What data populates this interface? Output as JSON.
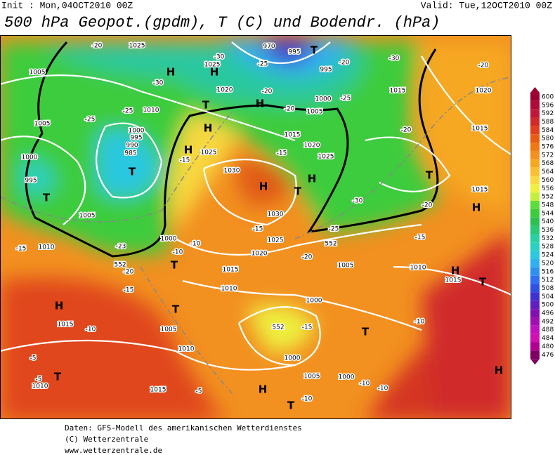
{
  "header": {
    "init": "Init : Mon,04OCT2010 00Z",
    "valid": "Valid: Tue,12OCT2010 00Z",
    "title": "500 hPa Geopot.(gpdm), T (C) und Bodendr. (hPa)"
  },
  "legend": {
    "labels": [
      {
        "text": "600",
        "color": "#9c0030"
      },
      {
        "text": "596",
        "color": "#ae0c36"
      },
      {
        "text": "592",
        "color": "#c0183a"
      },
      {
        "text": "588",
        "color": "#d02a2a"
      },
      {
        "text": "584",
        "color": "#e0401c"
      },
      {
        "text": "580",
        "color": "#e85c12"
      },
      {
        "text": "576",
        "color": "#f07814"
      },
      {
        "text": "572",
        "color": "#f29020"
      },
      {
        "text": "568",
        "color": "#f6a822"
      },
      {
        "text": "564",
        "color": "#f8c032"
      },
      {
        "text": "560",
        "color": "#f8d840"
      },
      {
        "text": "556",
        "color": "#eef040"
      },
      {
        "text": "552",
        "color": "#c4ee3c"
      },
      {
        "text": "548",
        "color": "#5cdc3c"
      },
      {
        "text": "544",
        "color": "#3ccc3c"
      },
      {
        "text": "540",
        "color": "#2cc050"
      },
      {
        "text": "536",
        "color": "#2cc878"
      },
      {
        "text": "532",
        "color": "#2cd0a0"
      },
      {
        "text": "528",
        "color": "#2cd0c0"
      },
      {
        "text": "524",
        "color": "#2cc8e0"
      },
      {
        "text": "520",
        "color": "#30b0f0"
      },
      {
        "text": "516",
        "color": "#3090f0"
      },
      {
        "text": "512",
        "color": "#3070f0"
      },
      {
        "text": "508",
        "color": "#3050e0"
      },
      {
        "text": "504",
        "color": "#4030d0"
      },
      {
        "text": "500",
        "color": "#6020c0"
      },
      {
        "text": "496",
        "color": "#8010b0"
      },
      {
        "text": "492",
        "color": "#a010b0"
      },
      {
        "text": "488",
        "color": "#c010c0"
      },
      {
        "text": "484",
        "color": "#d010b0"
      },
      {
        "text": "480",
        "color": "#b00090"
      },
      {
        "text": "476",
        "color": "#800060"
      }
    ]
  },
  "map_labels": [
    "H",
    "H",
    "T",
    "970",
    "H",
    "T",
    "H",
    "H",
    "T",
    "T",
    "H",
    "T",
    "H",
    "T",
    "H",
    "T",
    "H",
    "T",
    "T",
    "H",
    "T",
    "H",
    "H",
    "T",
    "T",
    "1025",
    "1005",
    "1025",
    "1020",
    "1010",
    "1005",
    "1000",
    "995",
    "990",
    "985",
    "1000",
    "995",
    "1005",
    "1010",
    "1025",
    "1030",
    "1030",
    "1025",
    "1020",
    "1000",
    "1015",
    "1010",
    "1015",
    "1000",
    "1005",
    "1015",
    "1020",
    "1025",
    "1015",
    "1020",
    "1015",
    "1005",
    "1010",
    "1015",
    "1000",
    "1000",
    "1005",
    "1000",
    "1015",
    "1005",
    "1010",
    "1010",
    "1015",
    "995",
    "995",
    "-20",
    "-25",
    "-30",
    "-30",
    "-25",
    "-25",
    "-20",
    "-25",
    "-30",
    "-20",
    "-20",
    "-20",
    "-30",
    "-25",
    "-15",
    "-23",
    "-20",
    "-15",
    "-10",
    "-5",
    "-5",
    "-5",
    "-10",
    "-10",
    "-15",
    "-20",
    "-15",
    "-10",
    "-10",
    "-10",
    "-15",
    "-10",
    "552",
    "552",
    "552",
    "-15",
    "-15",
    "-20",
    "-20"
  ],
  "footer": [
    "Daten: GFS-Modell des amerikanischen Wetterdienstes",
    "(C) Wetterzentrale",
    "www.wetterzentrale.de"
  ]
}
